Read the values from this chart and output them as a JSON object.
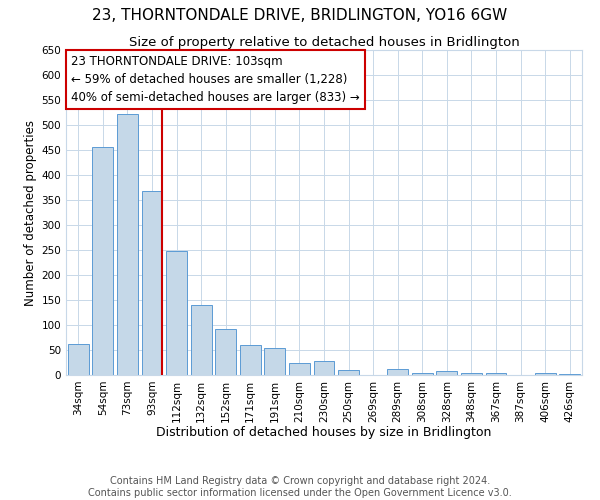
{
  "title": "23, THORNTONDALE DRIVE, BRIDLINGTON, YO16 6GW",
  "subtitle": "Size of property relative to detached houses in Bridlington",
  "xlabel": "Distribution of detached houses by size in Bridlington",
  "ylabel": "Number of detached properties",
  "footer_line1": "Contains HM Land Registry data © Crown copyright and database right 2024.",
  "footer_line2": "Contains public sector information licensed under the Open Government Licence v3.0.",
  "categories": [
    "34sqm",
    "54sqm",
    "73sqm",
    "93sqm",
    "112sqm",
    "132sqm",
    "152sqm",
    "171sqm",
    "191sqm",
    "210sqm",
    "230sqm",
    "250sqm",
    "269sqm",
    "289sqm",
    "308sqm",
    "328sqm",
    "348sqm",
    "367sqm",
    "387sqm",
    "406sqm",
    "426sqm"
  ],
  "values": [
    62,
    456,
    522,
    368,
    248,
    140,
    92,
    60,
    55,
    25,
    28,
    10,
    0,
    12,
    5,
    8,
    5,
    4,
    0,
    4,
    3
  ],
  "bar_color": "#c5d8e8",
  "bar_edge_color": "#5b9bd5",
  "ylim": [
    0,
    650
  ],
  "yticks": [
    0,
    50,
    100,
    150,
    200,
    250,
    300,
    350,
    400,
    450,
    500,
    550,
    600,
    650
  ],
  "vline_color": "#cc0000",
  "vline_x_index": 3,
  "annotation_title": "23 THORNTONDALE DRIVE: 103sqm",
  "annotation_line1": "← 59% of detached houses are smaller (1,228)",
  "annotation_line2": "40% of semi-detached houses are larger (833) →",
  "annotation_box_color": "#ffffff",
  "annotation_box_edge": "#cc0000",
  "background_color": "#ffffff",
  "grid_color": "#c8d8e8",
  "title_fontsize": 11,
  "subtitle_fontsize": 9.5,
  "xlabel_fontsize": 9,
  "ylabel_fontsize": 8.5,
  "tick_fontsize": 7.5,
  "annotation_fontsize": 8.5,
  "footer_fontsize": 7
}
